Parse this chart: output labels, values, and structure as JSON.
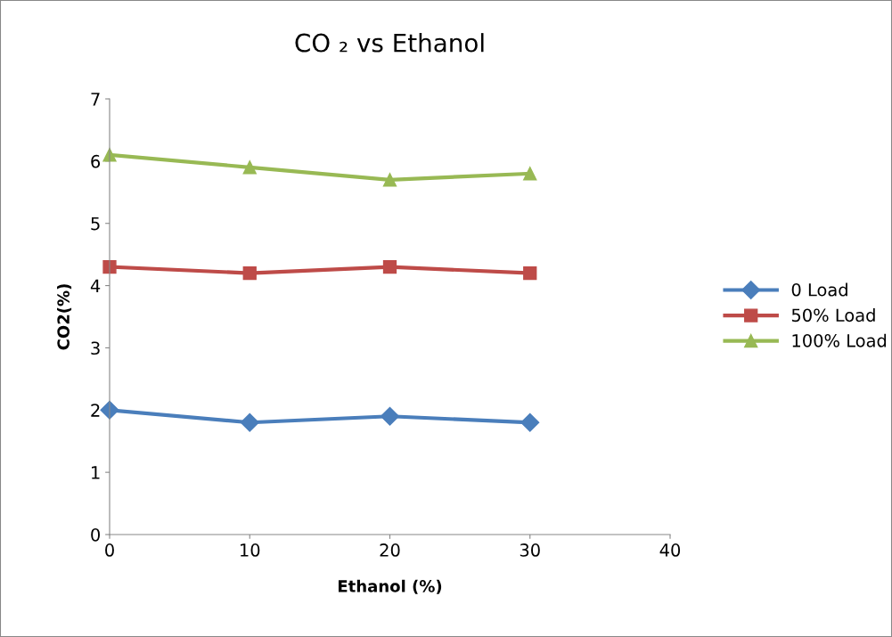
{
  "chart_data": {
    "type": "line",
    "title": "CO ₂ vs Ethanol",
    "xlabel": "Ethanol (%)",
    "ylabel": "CO2(%)",
    "x": [
      0,
      10,
      20,
      30
    ],
    "xlim": [
      0,
      40
    ],
    "xticks": [
      0,
      10,
      20,
      30,
      40
    ],
    "ylim": [
      0,
      7
    ],
    "yticks": [
      0,
      1,
      2,
      3,
      4,
      5,
      6,
      7
    ],
    "grid": false,
    "legend": "right",
    "line_style": "solid",
    "series": [
      {
        "name": "0 Load",
        "color": "#4a7ebb",
        "marker": "diamond",
        "values": [
          2.0,
          1.8,
          1.9,
          1.8
        ]
      },
      {
        "name": "50% Load",
        "color": "#be4b48",
        "marker": "square",
        "values": [
          4.3,
          4.2,
          4.3,
          4.2
        ]
      },
      {
        "name": "100% Load",
        "color": "#98b954",
        "marker": "triangle",
        "values": [
          6.1,
          5.9,
          5.7,
          5.8
        ]
      }
    ]
  }
}
